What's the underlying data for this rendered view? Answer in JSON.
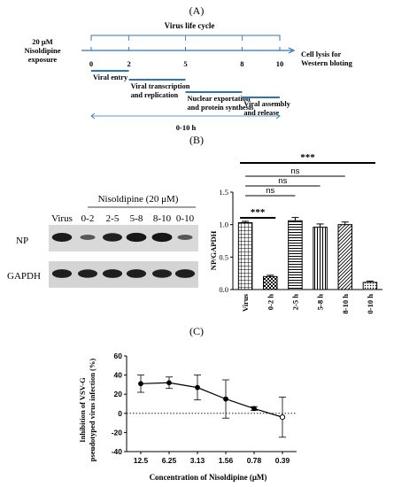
{
  "panel_a": {
    "label": "(A)",
    "life_cycle_label": "Virus life cycle",
    "exposure_label_1": "20 μM",
    "exposure_label_2": "Nisoldipine",
    "exposure_label_3": "exposure",
    "lysis_label_1": "Cell lysis for",
    "lysis_label_2": "Western bloting",
    "time_ticks": [
      "0",
      "2",
      "5",
      "8",
      "10"
    ],
    "stages": [
      {
        "lines": [
          "Viral entry"
        ],
        "start": 0,
        "end": 2
      },
      {
        "lines": [
          "Viral transcription",
          "and replication"
        ],
        "start": 2,
        "end": 5
      },
      {
        "lines": [
          "Nuclear exportation",
          "and protein synthesis"
        ],
        "start": 5,
        "end": 8
      },
      {
        "lines": [
          "Viral assembly",
          "and release"
        ],
        "start": 8,
        "end": 10
      }
    ],
    "range_label": "0-10 h",
    "accent_color": "#2e75b6"
  },
  "panel_b": {
    "label": "(B)",
    "blot": {
      "treatment_label": "Nisoldipine (20 μM)",
      "lanes": [
        "Virus",
        "0-2",
        "2-5",
        "5-8",
        "8-10",
        "0-10"
      ],
      "rows": [
        "NP",
        "GAPDH"
      ],
      "np_intensity": [
        0.85,
        0.3,
        0.8,
        0.88,
        0.9,
        0.3
      ],
      "gapdh_intensity": [
        0.82,
        0.8,
        0.82,
        0.82,
        0.8,
        0.82
      ]
    },
    "significance": [
      {
        "label": "***",
        "from": "Virus",
        "to": "0-10 h"
      },
      {
        "label": "ns",
        "from": "Virus",
        "to": "8-10 h"
      },
      {
        "label": "ns",
        "from": "Virus",
        "to": "5-8 h"
      },
      {
        "label": "ns",
        "from": "Virus",
        "to": "2-5 h"
      },
      {
        "label": "***",
        "from": "Virus",
        "to": "0-2 h"
      }
    ]
  },
  "panel_c": {
    "label": "(C)",
    "dotted_ref": 0
  },
  "chart_data": [
    {
      "type": "bar",
      "categories": [
        "Virus",
        "0-2 h",
        "2-5 h",
        "5-8 h",
        "8-10 h",
        "0-10 h"
      ],
      "values": [
        1.03,
        0.2,
        1.06,
        0.96,
        1.0,
        0.11
      ],
      "errors": [
        0.02,
        0.02,
        0.05,
        0.05,
        0.04,
        0.02
      ],
      "patterns": [
        "grid",
        "checker",
        "hlines",
        "vlines",
        "diag",
        "dots"
      ],
      "ylabel": "NP/GAPDH",
      "ylim": [
        0,
        1.5
      ],
      "yticks": [
        "0.0",
        "0.5",
        "1.0",
        "1.5"
      ]
    },
    {
      "type": "line",
      "categories": [
        "12.5",
        "6.25",
        "3.13",
        "1.56",
        "0.78",
        "0.39"
      ],
      "values": [
        31,
        32,
        27,
        15,
        5,
        -4
      ],
      "errors": [
        9,
        6,
        13,
        20,
        2,
        21
      ],
      "xlabel": "Concentration of Nisoldipine (μM)",
      "ylabel_1": "Inhibition of VSV-G",
      "ylabel_2": "pseudotyped virus infection (%)",
      "ylim": [
        -40,
        60
      ],
      "yticks": [
        "60",
        "40",
        "20",
        "0",
        "-20",
        "-40"
      ]
    }
  ]
}
